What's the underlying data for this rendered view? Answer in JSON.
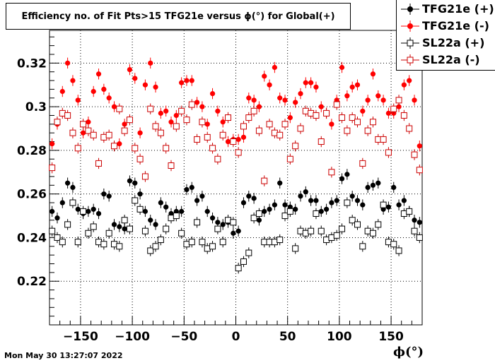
{
  "title": "Efficiency no. of Fit Pts>15 TFG21e versus ϕ(°) for Global(+)",
  "timestamp": "Mon May 30 13:27:07 2022",
  "chart_data": {
    "type": "scatter",
    "xlabel": "ϕ(°)",
    "ylabel": "",
    "xlim": [
      -180,
      180
    ],
    "ylim": [
      0.2,
      0.335
    ],
    "xticks": [
      -150,
      -100,
      -50,
      0,
      50,
      100,
      150
    ],
    "xtick_labels": [
      "−150",
      "−100",
      "−50",
      "0",
      "50",
      "100",
      "150"
    ],
    "yticks": [
      0.22,
      0.24,
      0.26,
      0.28,
      0.3,
      0.32
    ],
    "ytick_labels": [
      "0.22",
      "0.24",
      "0.26",
      "0.28",
      "0.3",
      "0.32"
    ],
    "grid": true,
    "legend_position": "top-right",
    "series": [
      {
        "name": "TFG21e (+)",
        "color": "#000000",
        "marker": "filled-circle",
        "x": [
          -177.5,
          -172.5,
          -167.5,
          -162.5,
          -157.5,
          -152.5,
          -147.5,
          -142.5,
          -137.5,
          -132.5,
          -127.5,
          -122.5,
          -117.5,
          -112.5,
          -107.5,
          -102.5,
          -97.5,
          -92.5,
          -87.5,
          -82.5,
          -77.5,
          -72.5,
          -67.5,
          -62.5,
          -57.5,
          -52.5,
          -47.5,
          -42.5,
          -37.5,
          -32.5,
          -27.5,
          -22.5,
          -17.5,
          -12.5,
          -7.5,
          -2.5,
          2.5,
          7.5,
          12.5,
          17.5,
          22.5,
          27.5,
          32.5,
          37.5,
          42.5,
          47.5,
          52.5,
          57.5,
          62.5,
          67.5,
          72.5,
          77.5,
          82.5,
          87.5,
          92.5,
          97.5,
          102.5,
          107.5,
          112.5,
          117.5,
          122.5,
          127.5,
          132.5,
          137.5,
          142.5,
          147.5,
          152.5,
          157.5,
          162.5,
          167.5,
          172.5,
          177.5
        ],
        "y": [
          0.252,
          0.249,
          0.256,
          0.265,
          0.263,
          0.253,
          0.251,
          0.252,
          0.253,
          0.251,
          0.26,
          0.259,
          0.246,
          0.245,
          0.244,
          0.266,
          0.265,
          0.26,
          0.252,
          0.248,
          0.246,
          0.256,
          0.254,
          0.251,
          0.252,
          0.252,
          0.262,
          0.263,
          0.257,
          0.259,
          0.252,
          0.249,
          0.247,
          0.246,
          0.247,
          0.242,
          0.243,
          0.256,
          0.259,
          0.258,
          0.248,
          0.252,
          0.253,
          0.255,
          0.265,
          0.255,
          0.254,
          0.253,
          0.259,
          0.261,
          0.257,
          0.257,
          0.252,
          0.253,
          0.256,
          0.257,
          0.267,
          0.269,
          0.259,
          0.257,
          0.255,
          0.263,
          0.264,
          0.265,
          0.253,
          0.254,
          0.263,
          0.255,
          0.257,
          0.252,
          0.248,
          0.247
        ],
        "err": [
          0.0025,
          0.0025,
          0.0025,
          0.0025,
          0.0025,
          0.0025,
          0.0025,
          0.0025,
          0.0025,
          0.0025,
          0.0025,
          0.0025,
          0.0025,
          0.0025,
          0.0025,
          0.0025,
          0.0025,
          0.0025,
          0.0025,
          0.0025,
          0.0025,
          0.0025,
          0.0025,
          0.0025,
          0.0025,
          0.0025,
          0.0025,
          0.0025,
          0.0025,
          0.0025,
          0.0025,
          0.0025,
          0.0025,
          0.0025,
          0.0025,
          0.0025,
          0.0025,
          0.0025,
          0.0025,
          0.0025,
          0.0025,
          0.0025,
          0.0025,
          0.0025,
          0.0025,
          0.0025,
          0.0025,
          0.0025,
          0.0025,
          0.0025,
          0.0025,
          0.0025,
          0.0025,
          0.0025,
          0.0025,
          0.0025,
          0.0025,
          0.0025,
          0.0025,
          0.0025,
          0.0025,
          0.0025,
          0.0025,
          0.0025,
          0.0025,
          0.0025,
          0.0025,
          0.0025,
          0.0025,
          0.0025,
          0.0025,
          0.0025
        ]
      },
      {
        "name": "TFG21e (-)",
        "color": "#ff0000",
        "marker": "filled-circle",
        "x": [
          -177.5,
          -172.5,
          -167.5,
          -162.5,
          -157.5,
          -152.5,
          -147.5,
          -142.5,
          -137.5,
          -132.5,
          -127.5,
          -122.5,
          -117.5,
          -112.5,
          -107.5,
          -102.5,
          -97.5,
          -92.5,
          -87.5,
          -82.5,
          -77.5,
          -72.5,
          -67.5,
          -62.5,
          -57.5,
          -52.5,
          -47.5,
          -42.5,
          -37.5,
          -32.5,
          -27.5,
          -22.5,
          -17.5,
          -12.5,
          -7.5,
          -2.5,
          2.5,
          7.5,
          12.5,
          17.5,
          22.5,
          27.5,
          32.5,
          37.5,
          42.5,
          47.5,
          52.5,
          57.5,
          62.5,
          67.5,
          72.5,
          77.5,
          82.5,
          87.5,
          92.5,
          97.5,
          102.5,
          107.5,
          112.5,
          117.5,
          122.5,
          127.5,
          132.5,
          137.5,
          142.5,
          147.5,
          152.5,
          157.5,
          162.5,
          167.5,
          172.5,
          177.5
        ],
        "y": [
          0.283,
          0.292,
          0.307,
          0.32,
          0.312,
          0.303,
          0.288,
          0.293,
          0.307,
          0.315,
          0.308,
          0.304,
          0.3,
          0.283,
          0.292,
          0.317,
          0.313,
          0.288,
          0.31,
          0.32,
          0.309,
          0.297,
          0.298,
          0.293,
          0.296,
          0.311,
          0.312,
          0.312,
          0.302,
          0.3,
          0.292,
          0.306,
          0.298,
          0.293,
          0.284,
          0.285,
          0.285,
          0.286,
          0.304,
          0.303,
          0.3,
          0.314,
          0.31,
          0.318,
          0.304,
          0.303,
          0.295,
          0.302,
          0.306,
          0.311,
          0.311,
          0.309,
          0.3,
          0.297,
          0.292,
          0.303,
          0.318,
          0.305,
          0.309,
          0.31,
          0.298,
          0.303,
          0.315,
          0.305,
          0.303,
          0.297,
          0.297,
          0.3,
          0.31,
          0.312,
          0.303,
          0.282
        ],
        "err": [
          0.0025,
          0.0025,
          0.0025,
          0.0025,
          0.0025,
          0.0025,
          0.0025,
          0.0025,
          0.0025,
          0.0025,
          0.0025,
          0.0025,
          0.0025,
          0.0025,
          0.0025,
          0.0025,
          0.0025,
          0.0025,
          0.0025,
          0.0025,
          0.0025,
          0.0025,
          0.0025,
          0.0025,
          0.0025,
          0.0025,
          0.0025,
          0.0025,
          0.0025,
          0.0025,
          0.0025,
          0.0025,
          0.0025,
          0.0025,
          0.0025,
          0.0025,
          0.0025,
          0.0025,
          0.0025,
          0.0025,
          0.0025,
          0.0025,
          0.0025,
          0.0025,
          0.0025,
          0.0025,
          0.0025,
          0.0025,
          0.0025,
          0.0025,
          0.0025,
          0.0025,
          0.0025,
          0.0025,
          0.0025,
          0.0025,
          0.0025,
          0.0025,
          0.0025,
          0.0025,
          0.0025,
          0.0025,
          0.0025,
          0.0025,
          0.0025,
          0.0025,
          0.0025,
          0.0025,
          0.0025,
          0.0025,
          0.0025,
          0.0025
        ]
      },
      {
        "name": "SL22a (+)",
        "color": "#000000",
        "marker": "open-square",
        "x": [
          -177.5,
          -172.5,
          -167.5,
          -162.5,
          -157.5,
          -152.5,
          -147.5,
          -142.5,
          -137.5,
          -132.5,
          -127.5,
          -122.5,
          -117.5,
          -112.5,
          -107.5,
          -102.5,
          -97.5,
          -92.5,
          -87.5,
          -82.5,
          -77.5,
          -72.5,
          -67.5,
          -62.5,
          -57.5,
          -52.5,
          -47.5,
          -42.5,
          -37.5,
          -32.5,
          -27.5,
          -22.5,
          -17.5,
          -12.5,
          -7.5,
          -2.5,
          2.5,
          7.5,
          12.5,
          17.5,
          22.5,
          27.5,
          32.5,
          37.5,
          42.5,
          47.5,
          52.5,
          57.5,
          62.5,
          67.5,
          72.5,
          77.5,
          82.5,
          87.5,
          92.5,
          97.5,
          102.5,
          107.5,
          112.5,
          117.5,
          122.5,
          127.5,
          132.5,
          137.5,
          142.5,
          147.5,
          152.5,
          157.5,
          162.5,
          167.5,
          172.5,
          177.5
        ],
        "y": [
          0.243,
          0.24,
          0.238,
          0.246,
          0.256,
          0.238,
          0.252,
          0.242,
          0.245,
          0.238,
          0.237,
          0.242,
          0.237,
          0.236,
          0.248,
          0.244,
          0.257,
          0.253,
          0.243,
          0.234,
          0.236,
          0.239,
          0.244,
          0.249,
          0.25,
          0.242,
          0.237,
          0.238,
          0.247,
          0.238,
          0.235,
          0.236,
          0.244,
          0.238,
          0.248,
          0.247,
          0.226,
          0.229,
          0.233,
          0.249,
          0.251,
          0.238,
          0.238,
          0.238,
          0.239,
          0.25,
          0.252,
          0.235,
          0.243,
          0.242,
          0.243,
          0.251,
          0.243,
          0.239,
          0.24,
          0.241,
          0.244,
          0.256,
          0.248,
          0.246,
          0.236,
          0.243,
          0.242,
          0.246,
          0.255,
          0.238,
          0.237,
          0.234,
          0.251,
          0.252,
          0.243,
          0.24
        ],
        "err": [
          0.0025,
          0.0025,
          0.0025,
          0.0025,
          0.0025,
          0.0025,
          0.0025,
          0.0025,
          0.0025,
          0.0025,
          0.0025,
          0.0025,
          0.0025,
          0.0025,
          0.0025,
          0.0025,
          0.0025,
          0.0025,
          0.0025,
          0.0025,
          0.0025,
          0.0025,
          0.0025,
          0.0025,
          0.0025,
          0.0025,
          0.0025,
          0.0025,
          0.0025,
          0.0025,
          0.0025,
          0.0025,
          0.0025,
          0.0025,
          0.0025,
          0.0025,
          0.0025,
          0.0025,
          0.0025,
          0.0025,
          0.0025,
          0.0025,
          0.0025,
          0.0025,
          0.0025,
          0.0025,
          0.0025,
          0.0025,
          0.0025,
          0.0025,
          0.0025,
          0.0025,
          0.0025,
          0.0025,
          0.0025,
          0.0025,
          0.0025,
          0.0025,
          0.0025,
          0.0025,
          0.0025,
          0.0025,
          0.0025,
          0.0025,
          0.0025,
          0.0025,
          0.0025,
          0.0025,
          0.0025,
          0.0025,
          0.0025,
          0.0025
        ]
      },
      {
        "name": "SL22a (-)",
        "color": "#cc0000",
        "marker": "open-square",
        "x": [
          -177.5,
          -172.5,
          -167.5,
          -162.5,
          -157.5,
          -152.5,
          -147.5,
          -142.5,
          -137.5,
          -132.5,
          -127.5,
          -122.5,
          -117.5,
          -112.5,
          -107.5,
          -102.5,
          -97.5,
          -92.5,
          -87.5,
          -82.5,
          -77.5,
          -72.5,
          -67.5,
          -62.5,
          -57.5,
          -52.5,
          -47.5,
          -42.5,
          -37.5,
          -32.5,
          -27.5,
          -22.5,
          -17.5,
          -12.5,
          -7.5,
          -2.5,
          2.5,
          7.5,
          12.5,
          17.5,
          22.5,
          27.5,
          32.5,
          37.5,
          42.5,
          47.5,
          52.5,
          57.5,
          62.5,
          67.5,
          72.5,
          77.5,
          82.5,
          87.5,
          92.5,
          97.5,
          102.5,
          107.5,
          112.5,
          117.5,
          122.5,
          127.5,
          132.5,
          137.5,
          142.5,
          147.5,
          152.5,
          157.5,
          162.5,
          167.5,
          172.5,
          177.5
        ],
        "y": [
          0.272,
          0.293,
          0.297,
          0.296,
          0.288,
          0.281,
          0.292,
          0.289,
          0.287,
          0.274,
          0.286,
          0.287,
          0.282,
          0.299,
          0.289,
          0.294,
          0.281,
          0.276,
          0.268,
          0.299,
          0.291,
          0.288,
          0.281,
          0.273,
          0.291,
          0.298,
          0.294,
          0.301,
          0.285,
          0.293,
          0.286,
          0.281,
          0.276,
          0.287,
          0.295,
          0.284,
          0.279,
          0.291,
          0.295,
          0.298,
          0.289,
          0.266,
          0.292,
          0.288,
          0.287,
          0.292,
          0.276,
          0.282,
          0.29,
          0.298,
          0.297,
          0.296,
          0.284,
          0.297,
          0.27,
          0.301,
          0.295,
          0.289,
          0.295,
          0.293,
          0.274,
          0.289,
          0.293,
          0.285,
          0.285,
          0.279,
          0.299,
          0.303,
          0.296,
          0.29,
          0.278,
          0.271
        ],
        "err": [
          0.0025,
          0.0025,
          0.0025,
          0.0025,
          0.0025,
          0.0025,
          0.0025,
          0.0025,
          0.0025,
          0.0025,
          0.0025,
          0.0025,
          0.0025,
          0.0025,
          0.0025,
          0.0025,
          0.0025,
          0.0025,
          0.0025,
          0.0025,
          0.0025,
          0.0025,
          0.0025,
          0.0025,
          0.0025,
          0.0025,
          0.0025,
          0.0025,
          0.0025,
          0.0025,
          0.0025,
          0.0025,
          0.0025,
          0.0025,
          0.0025,
          0.0025,
          0.0025,
          0.0025,
          0.0025,
          0.0025,
          0.0025,
          0.0025,
          0.0025,
          0.0025,
          0.0025,
          0.0025,
          0.0025,
          0.0025,
          0.0025,
          0.0025,
          0.0025,
          0.0025,
          0.0025,
          0.0025,
          0.0025,
          0.0025,
          0.0025,
          0.0025,
          0.0025,
          0.0025,
          0.0025,
          0.0025,
          0.0025,
          0.0025,
          0.0025,
          0.0025,
          0.0025,
          0.0025,
          0.0025,
          0.0025,
          0.0025,
          0.0025
        ]
      }
    ]
  }
}
